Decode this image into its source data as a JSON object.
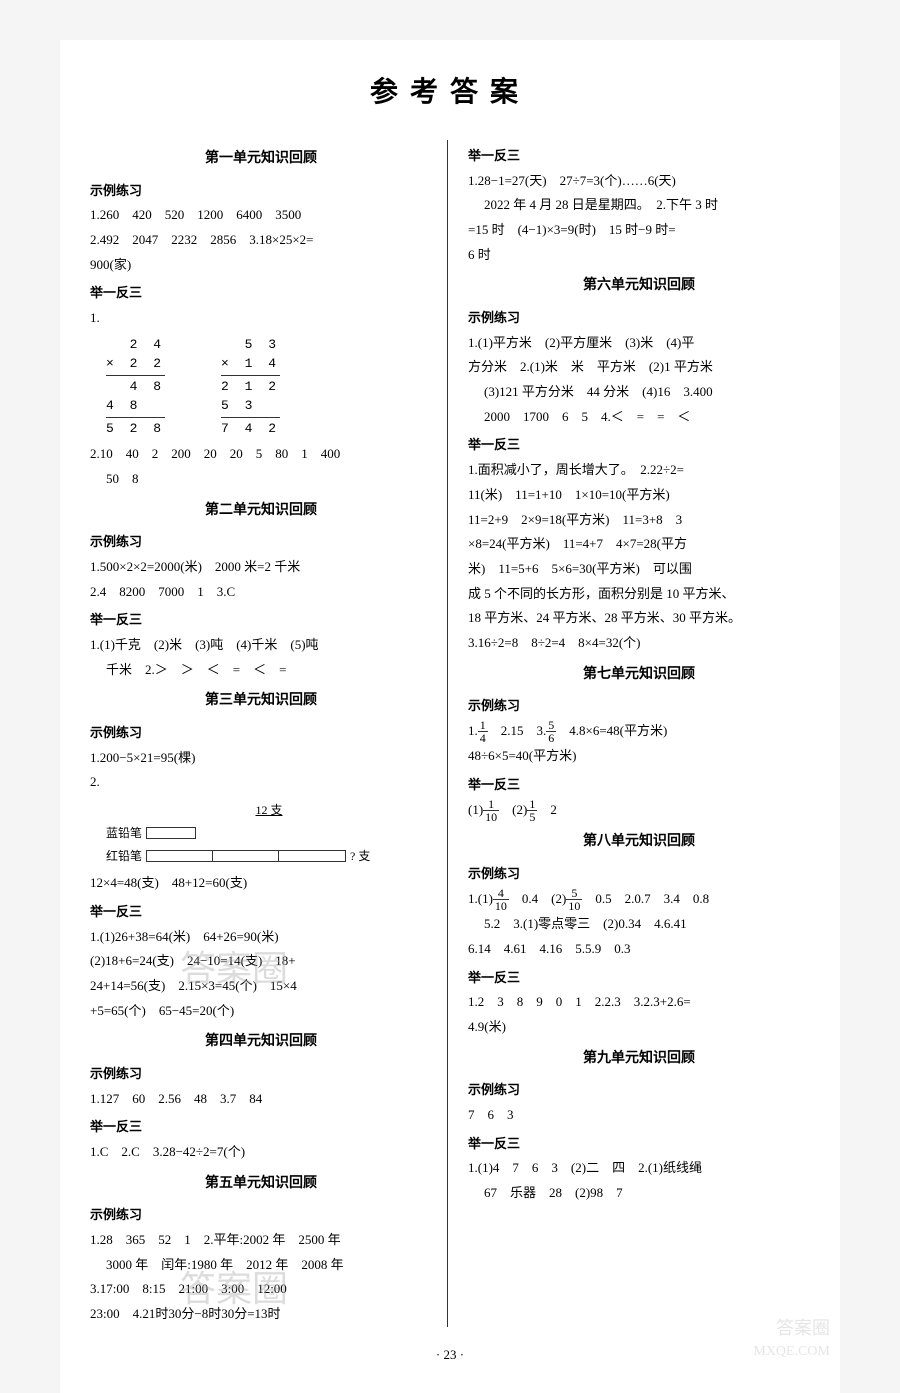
{
  "title": "参考答案",
  "page_number": "· 23 ·",
  "left": {
    "unit1": {
      "title": "第一单元知识回顾",
      "example_label": "示例练习",
      "line1": "1.260　420　520　1200　6400　3500",
      "line2": "2.492　2047　2232　2856　3.18×25×2=",
      "line3": "900(家)",
      "variation_label": "举一反三",
      "v1": "1.",
      "calc1": {
        "r1": "  2 4",
        "r2": "× 2 2",
        "r3": "  4 8",
        "r4": "4 8  ",
        "r5": "5 2 8"
      },
      "calc2": {
        "r1": "  5 3",
        "r2": "× 1 4",
        "r3": "2 1 2",
        "r4": "5 3  ",
        "r5": "7 4 2"
      },
      "v2a": "2.10　40　2　200　20　20　5　80　1　400",
      "v2b": "50　8"
    },
    "unit2": {
      "title": "第二单元知识回顾",
      "example_label": "示例练习",
      "e1": "1.500×2×2=2000(米)　2000 米=2 千米",
      "e2": "2.4　8200　7000　1　3.C",
      "variation_label": "举一反三",
      "v1": "1.(1)千克　(2)米　(3)吨　(4)千米　(5)吨",
      "v2": "千米　2.＞　＞　＜　=　＜　="
    },
    "unit3": {
      "title": "第三单元知识回顾",
      "example_label": "示例练习",
      "e1": "1.200−5×21=95(棵)",
      "e2": "2.",
      "d_label": "12 支",
      "d_blue": "蓝铅笔",
      "d_red": "红铅笔",
      "d_q": "? 支",
      "e3": "12×4=48(支)　48+12=60(支)",
      "variation_label": "举一反三",
      "v1": "1.(1)26+38=64(米)　64+26=90(米)",
      "v2": "(2)18+6=24(支)　24−10=14(支)　18+",
      "v3": "24+14=56(支)　2.15×3=45(个)　15×4",
      "v4": "+5=65(个)　65−45=20(个)"
    },
    "unit4": {
      "title": "第四单元知识回顾",
      "example_label": "示例练习",
      "e1": "1.127　60　2.56　48　3.7　84",
      "variation_label": "举一反三",
      "v1": "1.C　2.C　3.28−42÷2=7(个)"
    },
    "unit5": {
      "title": "第五单元知识回顾",
      "example_label": "示例练习",
      "e1": "1.28　365　52　1　2.平年:2002 年　2500 年",
      "e2": "3000 年　闰年:1980 年　2012 年　2008 年",
      "e3": "3.17:00　8:15　21:00　3:00　12:00",
      "e4": "23:00　4.21时30分−8时30分=13时"
    }
  },
  "right": {
    "unit5v": {
      "variation_label": "举一反三",
      "v1": "1.28−1=27(天)　27÷7=3(个)……6(天)",
      "v2": "2022 年 4 月 28 日是星期四。　2.下午 3 时",
      "v3": "=15 时　(4−1)×3=9(时)　15 时−9 时=",
      "v4": "6 时"
    },
    "unit6": {
      "title": "第六单元知识回顾",
      "example_label": "示例练习",
      "e1": "1.(1)平方米　(2)平方厘米　(3)米　(4)平",
      "e2": "方分米　2.(1)米　米　平方米　(2)1 平方米",
      "e3": "(3)121 平方分米　44 分米　(4)16　3.400",
      "e4": "2000　1700　6　5　4.＜　=　=　＜",
      "variation_label": "举一反三",
      "v1": "1.面积减小了，周长增大了。　2.22÷2=",
      "v2": "11(米)　11=1+10　1×10=10(平方米)",
      "v3": "11=2+9　2×9=18(平方米)　11=3+8　3",
      "v4": "×8=24(平方米)　11=4+7　4×7=28(平方",
      "v5": "米)　11=5+6　5×6=30(平方米)　可以围",
      "v6": "成 5 个不同的长方形，面积分别是 10 平方米、",
      "v7": "18 平方米、24 平方米、28 平方米、30 平方米。",
      "v8": "3.16÷2=8　8÷2=4　8×4=32(个)"
    },
    "unit7": {
      "title": "第七单元知识回顾",
      "example_label": "示例练习",
      "e1_pre": "1.",
      "f1n": "1",
      "f1d": "4",
      "e1_mid": "　2.15　3.",
      "f2n": "5",
      "f2d": "6",
      "e1_post": "　4.8×6=48(平方米)",
      "e2": "48÷6×5=40(平方米)",
      "variation_label": "举一反三",
      "v1_pre": "(1)",
      "f3n": "1",
      "f3d": "10",
      "v1_mid": "　(2)",
      "f4n": "1",
      "f4d": "5",
      "v1_post": "　2"
    },
    "unit8": {
      "title": "第八单元知识回顾",
      "example_label": "示例练习",
      "e1_pre": "1.(1)",
      "f5n": "4",
      "f5d": "10",
      "e1_mid": "　0.4　(2)",
      "f6n": "5",
      "f6d": "10",
      "e1_post": "　0.5　2.0.7　3.4　0.8",
      "e2": "5.2　3.(1)零点零三　(2)0.34　4.6.41",
      "e3": "6.14　4.61　4.16　5.5.9　0.3",
      "variation_label": "举一反三",
      "v1": "1.2　3　8　9　0　1　2.2.3　3.2.3+2.6=",
      "v2": "4.9(米)"
    },
    "unit9": {
      "title": "第九单元知识回顾",
      "example_label": "示例练习",
      "e1": "7　6　3",
      "variation_label": "举一反三",
      "v1": "1.(1)4　7　6　3　(2)二　四　2.(1)纸线绳",
      "v2": "67　乐器　28　(2)98　7"
    }
  },
  "watermarks": {
    "wm1": "答案圈",
    "wm2": "答案圈",
    "corner": "答案圈",
    "url": "MXQE.COM"
  }
}
